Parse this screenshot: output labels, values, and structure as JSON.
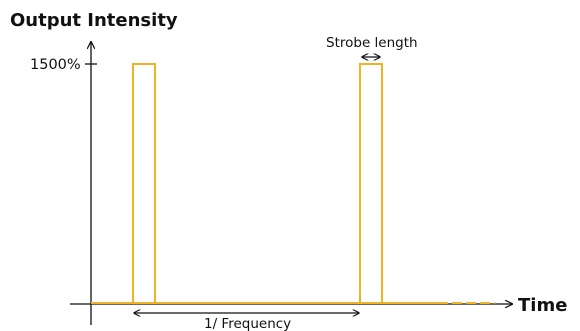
{
  "title": "Output Intensity",
  "x_axis_label": "Time",
  "y_tick_label": "1500%",
  "strobe_label": "Strobe length",
  "period_label": "1/ Frequency",
  "colors": {
    "pulse": "#f0b323",
    "baseline": "#f0b323",
    "axis": "#111111"
  }
}
